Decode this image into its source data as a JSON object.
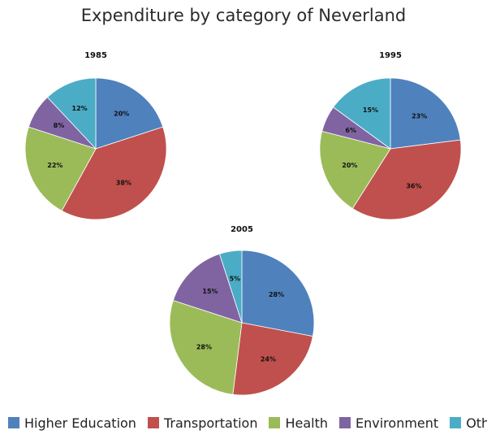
{
  "title": "Expenditure by category of Neverland",
  "chart_data": [
    {
      "type": "pie",
      "title": "1985",
      "categories": [
        "Higher Education",
        "Transportation",
        "Health",
        "Environment",
        "Other"
      ],
      "values": [
        20,
        38,
        22,
        8,
        12
      ],
      "labels": [
        "20%",
        "38%",
        "22%",
        "8%",
        "12%"
      ]
    },
    {
      "type": "pie",
      "title": "1995",
      "categories": [
        "Higher Education",
        "Transportation",
        "Health",
        "Environment",
        "Other"
      ],
      "values": [
        23,
        36,
        20,
        6,
        15
      ],
      "labels": [
        "23%",
        "36%",
        "20%",
        "6%",
        "15%"
      ]
    },
    {
      "type": "pie",
      "title": "2005",
      "categories": [
        "Higher Education",
        "Transportation",
        "Health",
        "Environment",
        "Other"
      ],
      "values": [
        28,
        24,
        28,
        15,
        5
      ],
      "labels": [
        "28%",
        "24%",
        "28%",
        "15%",
        "5%"
      ]
    }
  ],
  "legend": {
    "placement": "bottom",
    "items": [
      {
        "label": "Higher Education",
        "color": "#4F81BD"
      },
      {
        "label": "Transportation",
        "color": "#C0504D"
      },
      {
        "label": "Health",
        "color": "#9BBB59"
      },
      {
        "label": "Environment",
        "color": "#8064A2"
      },
      {
        "label": "Other",
        "color": "#4BACC6"
      }
    ]
  }
}
